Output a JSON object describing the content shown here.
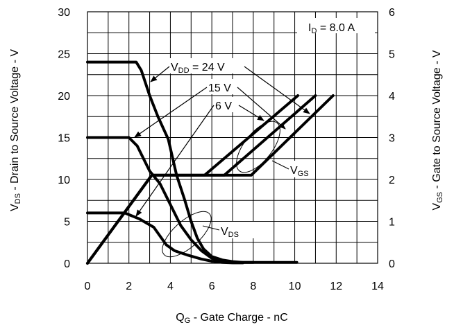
{
  "chart_data": {
    "type": "line",
    "title": "",
    "x_axis": {
      "label_main": "Q",
      "label_sub": "G",
      "label_rest": " - Gate Charge - nC",
      "min": 0,
      "max": 14,
      "ticks": [
        0,
        2,
        4,
        6,
        8,
        10,
        12,
        14
      ]
    },
    "y_left": {
      "label_main": "V",
      "label_sub": "DS",
      "label_rest": " - Drain to Source Voltage - V",
      "min": 0,
      "max": 30,
      "ticks": [
        0,
        5,
        10,
        15,
        20,
        25,
        30
      ]
    },
    "y_right": {
      "label_main": "V",
      "label_sub": "GS",
      "label_rest": " - Gate to Source Voltage - V",
      "min": 0,
      "max": 6,
      "ticks": [
        0,
        1,
        2,
        3,
        4,
        5,
        6
      ]
    },
    "grid": true,
    "condition": {
      "main": "I",
      "sub": "D",
      "rest": " = 8.0 A"
    },
    "annotations": {
      "vdd_24": {
        "main": "V",
        "sub": "DD",
        "rest": " = 24 V"
      },
      "vdd_15": "15 V",
      "vdd_6": "6 V",
      "vgs_group": {
        "main": "V",
        "sub": "GS"
      },
      "vds_group": {
        "main": "V",
        "sub": "DS"
      }
    },
    "series": [
      {
        "name": "VDS 24 V",
        "axis": "left",
        "x": [
          0,
          2.35,
          2.6,
          3.0,
          3.4,
          3.9,
          4.3,
          4.7,
          5.0,
          5.3,
          5.6,
          6.0,
          6.5,
          7.0,
          7.5,
          8.0,
          9.0,
          10.1
        ],
        "y": [
          24,
          24,
          23,
          20,
          17.5,
          14.8,
          10.5,
          7.5,
          5,
          3,
          1.7,
          0.8,
          0.4,
          0.2,
          0.1,
          0.1,
          0.1,
          0.1
        ]
      },
      {
        "name": "VDS 15 V",
        "axis": "left",
        "x": [
          0,
          2.0,
          2.4,
          2.7,
          3.0,
          3.5,
          4.0,
          4.5,
          5.0,
          5.5,
          6.0,
          6.5,
          7.0,
          7.5,
          8.0
        ],
        "y": [
          15,
          15,
          14,
          12.5,
          11,
          9.5,
          7,
          4.5,
          2.8,
          1.5,
          0.6,
          0.25,
          0.1,
          0.1,
          0.1
        ]
      },
      {
        "name": "VDS 6 V",
        "axis": "left",
        "x": [
          0,
          1.8,
          2.5,
          3.2,
          3.8,
          4.2,
          4.8,
          5.5,
          6.0,
          6.5,
          7.0,
          7.5
        ],
        "y": [
          6,
          6,
          5.3,
          4.3,
          2.2,
          1.5,
          1.0,
          0.5,
          0.25,
          0.1,
          0.05,
          0.05
        ]
      },
      {
        "name": "VGS 6 V",
        "axis": "right",
        "x": [
          0,
          3.1,
          5.65,
          10.15
        ],
        "y": [
          0,
          2.1,
          2.1,
          4.0
        ]
      },
      {
        "name": "VGS 15 V",
        "axis": "right",
        "x": [
          0,
          3.1,
          6.6,
          11.0
        ],
        "y": [
          0,
          2.1,
          2.1,
          4.0
        ]
      },
      {
        "name": "VGS 24 V",
        "axis": "right",
        "x": [
          0,
          3.1,
          7.9,
          11.85
        ],
        "y": [
          0,
          2.1,
          2.1,
          4.0
        ]
      }
    ]
  }
}
